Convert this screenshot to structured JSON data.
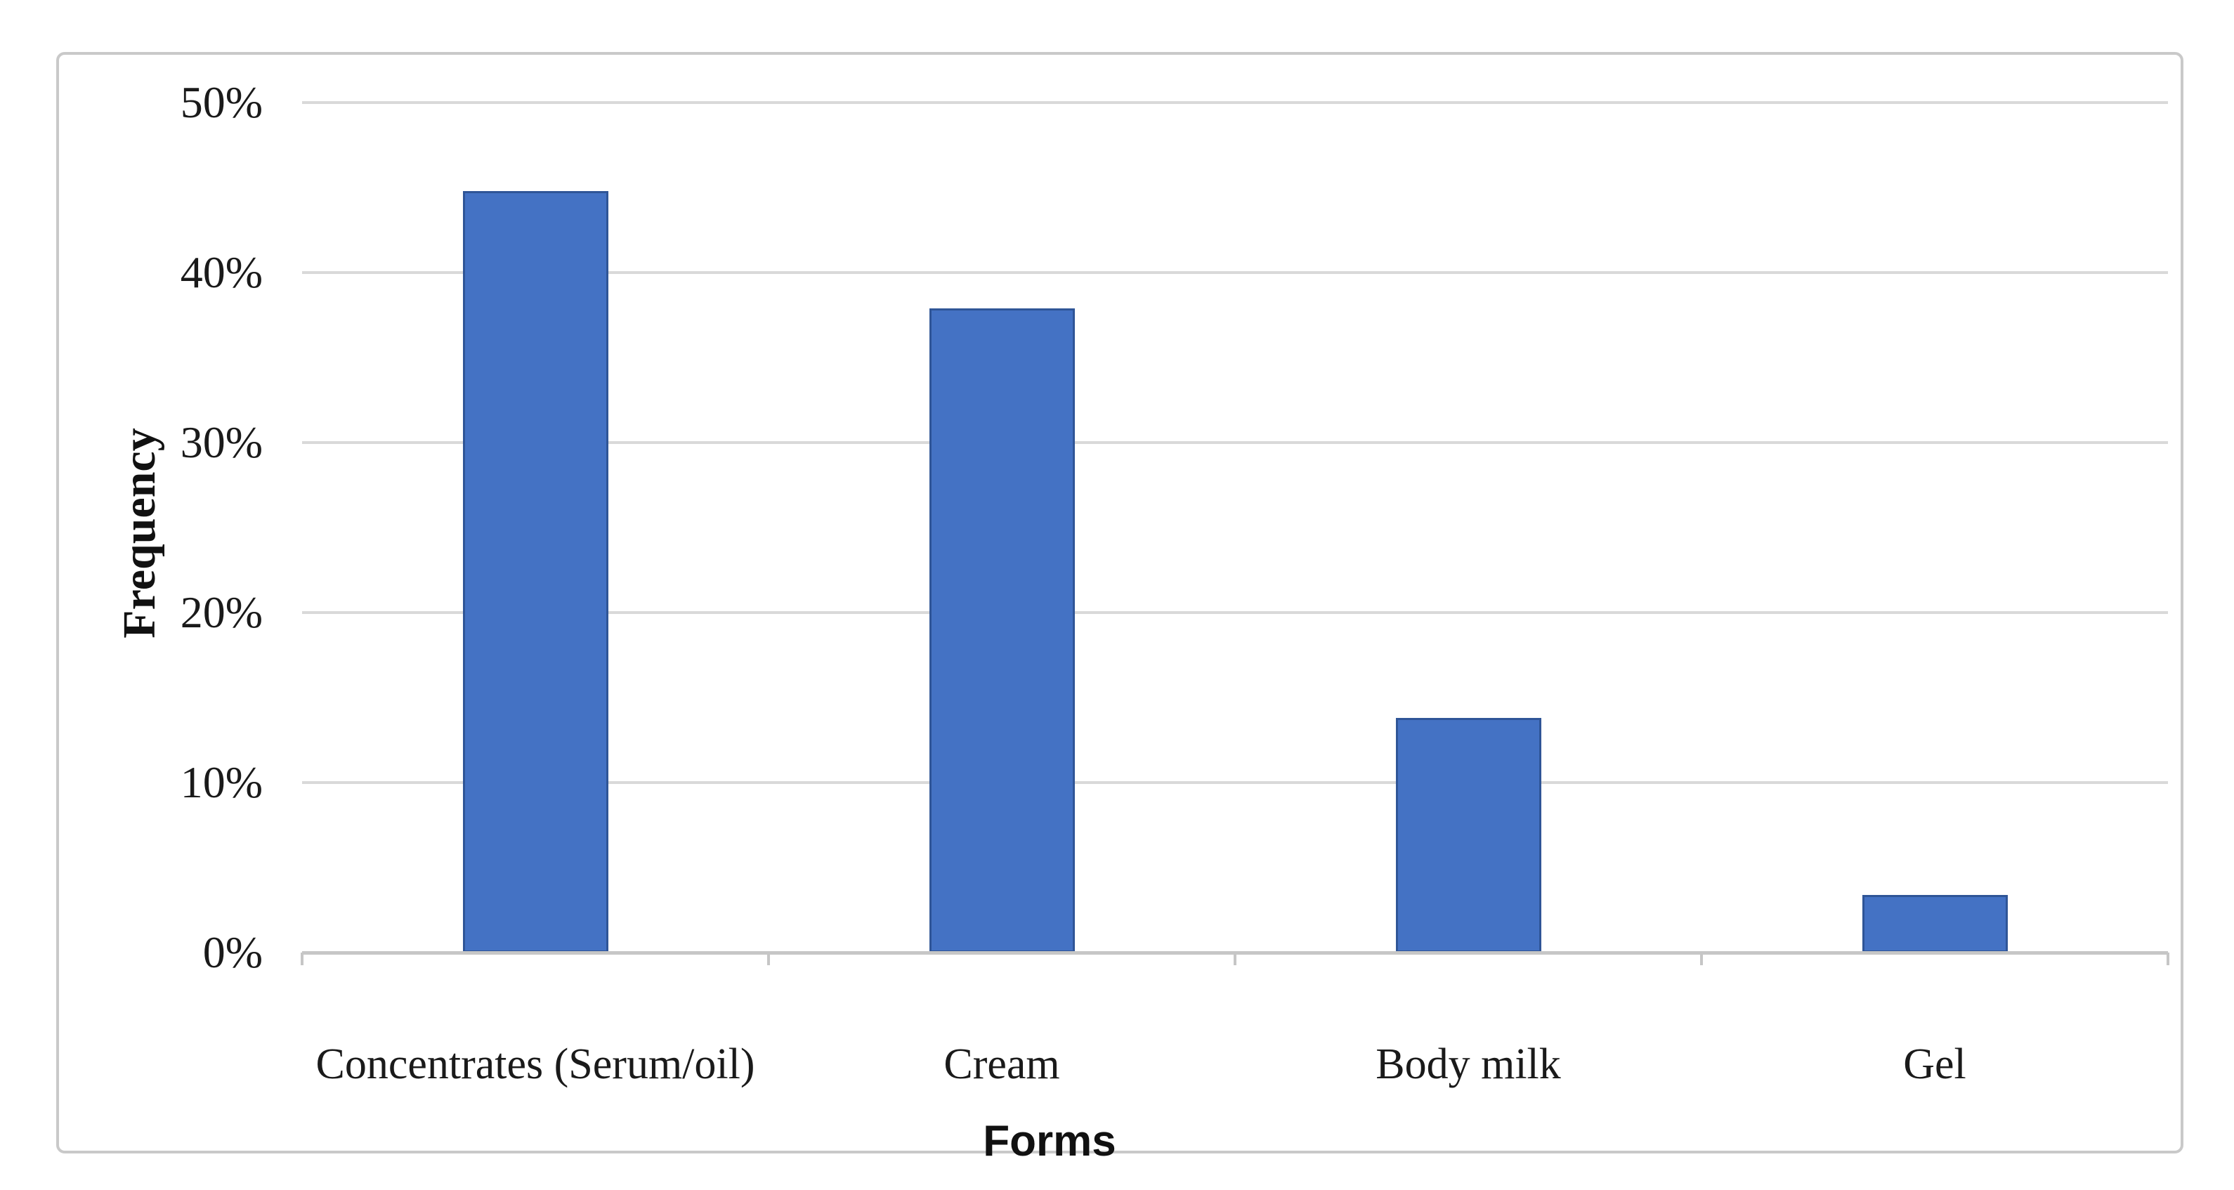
{
  "figure": {
    "background": "#ffffff",
    "frame_border_color": "#c9c9c9"
  },
  "chart_data": {
    "type": "bar",
    "title": "",
    "categories": [
      "Concentrates (Serum/oil)",
      "Cream",
      "Body milk",
      "Gel"
    ],
    "values": [
      44.8,
      37.9,
      13.8,
      3.4
    ],
    "value_unit": "%",
    "xlabel": "Forms",
    "ylabel": "Frequency",
    "ylim": [
      0,
      50
    ],
    "yticks": [
      {
        "value": 0,
        "label": "0%"
      },
      {
        "value": 10,
        "label": "10%"
      },
      {
        "value": 20,
        "label": "20%"
      },
      {
        "value": 30,
        "label": "30%"
      },
      {
        "value": 40,
        "label": "40%"
      },
      {
        "value": 50,
        "label": "50%"
      }
    ],
    "grid": "horizontal",
    "legend": "none",
    "data_labels": "none",
    "bar_fill_color": "#4472c4",
    "bar_border_color": "#2f5597",
    "gridline_color": "#d9d9d9",
    "axis_line_color": "#c6c6c6",
    "text_color": "#1a1a1a"
  }
}
